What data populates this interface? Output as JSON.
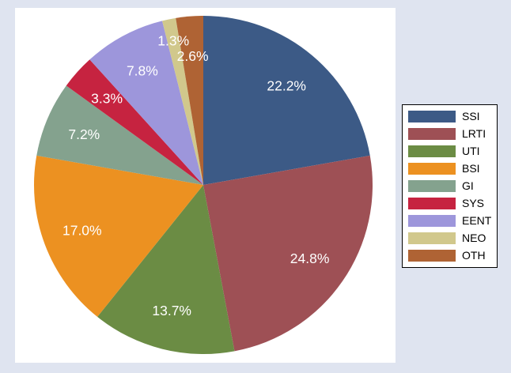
{
  "chart_data": {
    "type": "pie",
    "title": "",
    "legend_position": "right",
    "label_format": "percent",
    "label_color": "#FFFFFF",
    "background_color": "#DFE4F0",
    "plot_background_color": "#FFFFFF",
    "legend_border_color": "#000000",
    "categories": [
      "SSI",
      "LRTI",
      "UTI",
      "BSI",
      "GI",
      "SYS",
      "EENT",
      "NEO",
      "OTH"
    ],
    "values": [
      22.2,
      24.8,
      13.7,
      17.0,
      7.2,
      3.3,
      7.8,
      1.3,
      2.6
    ],
    "slices": [
      {
        "label": "SSI",
        "value": 22.2,
        "display": "22.2%",
        "color": "#3C5A86",
        "label_r": 0.765
      },
      {
        "label": "LRTI",
        "value": 24.8,
        "display": "24.8%",
        "color": "#9E5055",
        "label_r": 0.765
      },
      {
        "label": "UTI",
        "value": 13.7,
        "display": "13.7%",
        "color": "#6B8C44",
        "label_r": 0.765
      },
      {
        "label": "BSI",
        "value": 17.0,
        "display": "17.0%",
        "color": "#EC9121",
        "label_r": 0.765
      },
      {
        "label": "GI",
        "value": 7.2,
        "display": "7.2%",
        "color": "#84A28E",
        "label_r": 0.765
      },
      {
        "label": "SYS",
        "value": 3.3,
        "display": "3.3%",
        "color": "#C62340",
        "label_r": 0.765
      },
      {
        "label": "EENT",
        "value": 7.8,
        "display": "7.8%",
        "color": "#9D96DB",
        "label_r": 0.765
      },
      {
        "label": "NEO",
        "value": 1.3,
        "display": "1.3%",
        "color": "#D1C88C",
        "label_r": 0.87
      },
      {
        "label": "OTH",
        "value": 2.6,
        "display": "2.6%",
        "color": "#AF6334",
        "label_r": 0.765
      }
    ],
    "start_angle_deg": 0,
    "direction": "clockwise"
  }
}
